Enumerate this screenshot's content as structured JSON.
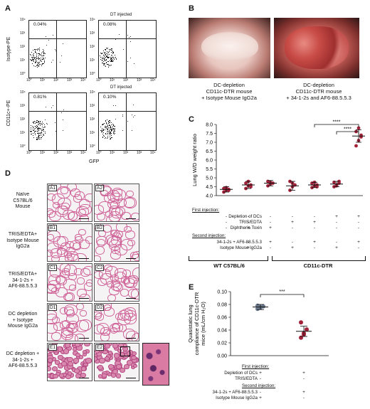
{
  "panels": {
    "A": "A",
    "B": "B",
    "C": "C",
    "D": "D",
    "E": "E"
  },
  "panel_a": {
    "ylabel_top": "Isotype-PE",
    "ylabel_bottom": "CD11c+-PE",
    "xlabel": "GFP",
    "dt_label": "DT injected",
    "tl_pct": "0.04%",
    "tr_pct": "0.08%",
    "bl_pct": "0.81%",
    "br_pct": "0.10%",
    "ticks_y": [
      "10⁴",
      "10³",
      "10²",
      "10¹",
      "10⁰"
    ],
    "ticks_x": [
      "10⁰",
      "10¹",
      "10²",
      "10³",
      "10⁴"
    ]
  },
  "panel_b": {
    "left_caption": [
      "DC-depletion",
      "CD11c-DTR mouse",
      "+ Isotype Mouse IgG2a"
    ],
    "right_caption": [
      "DC-depletion",
      "CD11c-DTR mouse",
      "+ 34-1-2s and AF6-88.5.5.3"
    ]
  },
  "chart_data": [
    {
      "type": "scatter",
      "panel": "C",
      "ylabel": "Lung W/D weight ratio",
      "ylim": [
        4.0,
        8.0
      ],
      "yticks": [
        "8.0",
        "7.5",
        "7.0",
        "6.5",
        "6.0",
        "5.5",
        "5.0",
        "4.5",
        "4.0"
      ],
      "significance": [
        "****",
        "****"
      ],
      "groups": [
        {
          "mean": 4.35,
          "sd": 0.15,
          "points": [
            4.2,
            4.3,
            4.35,
            4.4,
            4.45,
            4.3
          ]
        },
        {
          "mean": 4.6,
          "sd": 0.2,
          "points": [
            4.4,
            4.55,
            4.6,
            4.7,
            4.8,
            4.5
          ]
        },
        {
          "mean": 4.7,
          "sd": 0.15,
          "points": [
            4.55,
            4.65,
            4.7,
            4.8,
            4.75
          ]
        },
        {
          "mean": 4.55,
          "sd": 0.25,
          "points": [
            4.3,
            4.5,
            4.6,
            4.8,
            4.7
          ]
        },
        {
          "mean": 4.6,
          "sd": 0.15,
          "points": [
            4.45,
            4.55,
            4.6,
            4.7,
            4.75,
            4.5
          ]
        },
        {
          "mean": 4.65,
          "sd": 0.15,
          "points": [
            4.5,
            4.6,
            4.7,
            4.75,
            4.55,
            4.8
          ]
        },
        {
          "mean": 7.35,
          "sd": 0.35,
          "points": [
            6.8,
            7.1,
            7.4,
            7.6,
            7.8,
            7.3
          ]
        }
      ]
    },
    {
      "type": "scatter",
      "panel": "E",
      "ylabel": "Quasistatic lung compliance of CD11c-DTR mice (mL/cm H₂O)",
      "ylim": [
        0.0,
        0.1
      ],
      "yticks": [
        "0.10",
        "0.08",
        "0.06",
        "0.04",
        "0.02",
        "0.00"
      ],
      "significance": "***",
      "groups": [
        {
          "mean": 0.076,
          "sd": 0.004,
          "color": "#6b7a8f",
          "points": [
            0.073,
            0.075,
            0.077,
            0.078,
            0.076
          ]
        },
        {
          "mean": 0.038,
          "sd": 0.008,
          "color": "#a3233a",
          "points": [
            0.028,
            0.035,
            0.041,
            0.052,
            0.033
          ]
        }
      ]
    }
  ],
  "panel_c_table": {
    "first_injection": "First injection:",
    "rows1": [
      "Depletion of DCs",
      "TRIS/EDTA",
      "Diphtheria Toxin"
    ],
    "second_injection": "Second injection:",
    "rows2": [
      "34-1-2s + AF6-88.5.5.3",
      "Isotype Mouse IgG2a"
    ],
    "values": [
      [
        "-",
        "-",
        "-",
        "-",
        "-",
        "+",
        "+"
      ],
      [
        "-",
        "-",
        "-",
        "+",
        "+",
        "-",
        "-"
      ],
      [
        "-",
        "+",
        "+",
        "-",
        "-",
        "-",
        "-"
      ],
      [
        "-",
        "-",
        "+",
        "-",
        "+",
        "-",
        "+"
      ],
      [
        "-",
        "+",
        "-",
        "+",
        "-",
        "+",
        "-"
      ]
    ],
    "group1": "WT C57BL/6",
    "group2": "CD11c-DTR"
  },
  "panel_d": {
    "rows": [
      {
        "label": [
          "Naïve",
          "C57BL/6",
          "Mouse"
        ],
        "tiles": [
          "A1",
          "A2"
        ]
      },
      {
        "label": [
          "TRIS/EDTA+",
          "Isotype Mouse",
          "IgG2a"
        ],
        "tiles": [
          "B1",
          "B2"
        ]
      },
      {
        "label": [
          "TRIS/EDTA+",
          "34-1-2s +",
          "AF6-88.5.5.3"
        ],
        "tiles": [
          "C1",
          "C2"
        ]
      },
      {
        "label": [
          "DC depletion",
          "+ Isotype",
          "Mouse IgG2a"
        ],
        "tiles": [
          "D1",
          "D2"
        ]
      },
      {
        "label": [
          "DC depletion +",
          "34-1-2s +",
          "AF6-88.5.5.3"
        ],
        "tiles": [
          "E1",
          "E2"
        ]
      }
    ]
  },
  "panel_e_table": {
    "first_injection": "First injection:",
    "rows1": [
      "Depletion of DCs",
      "TRIS/EDTA"
    ],
    "second_injection": "Second injection:",
    "rows2": [
      "34-1-2s + AF6-88.5.5.3",
      "Isotype Mouse IgG2a"
    ],
    "values": [
      [
        "+",
        "+"
      ],
      [
        "-",
        "-"
      ],
      [
        "-",
        "+"
      ],
      [
        "+",
        "-"
      ]
    ]
  }
}
